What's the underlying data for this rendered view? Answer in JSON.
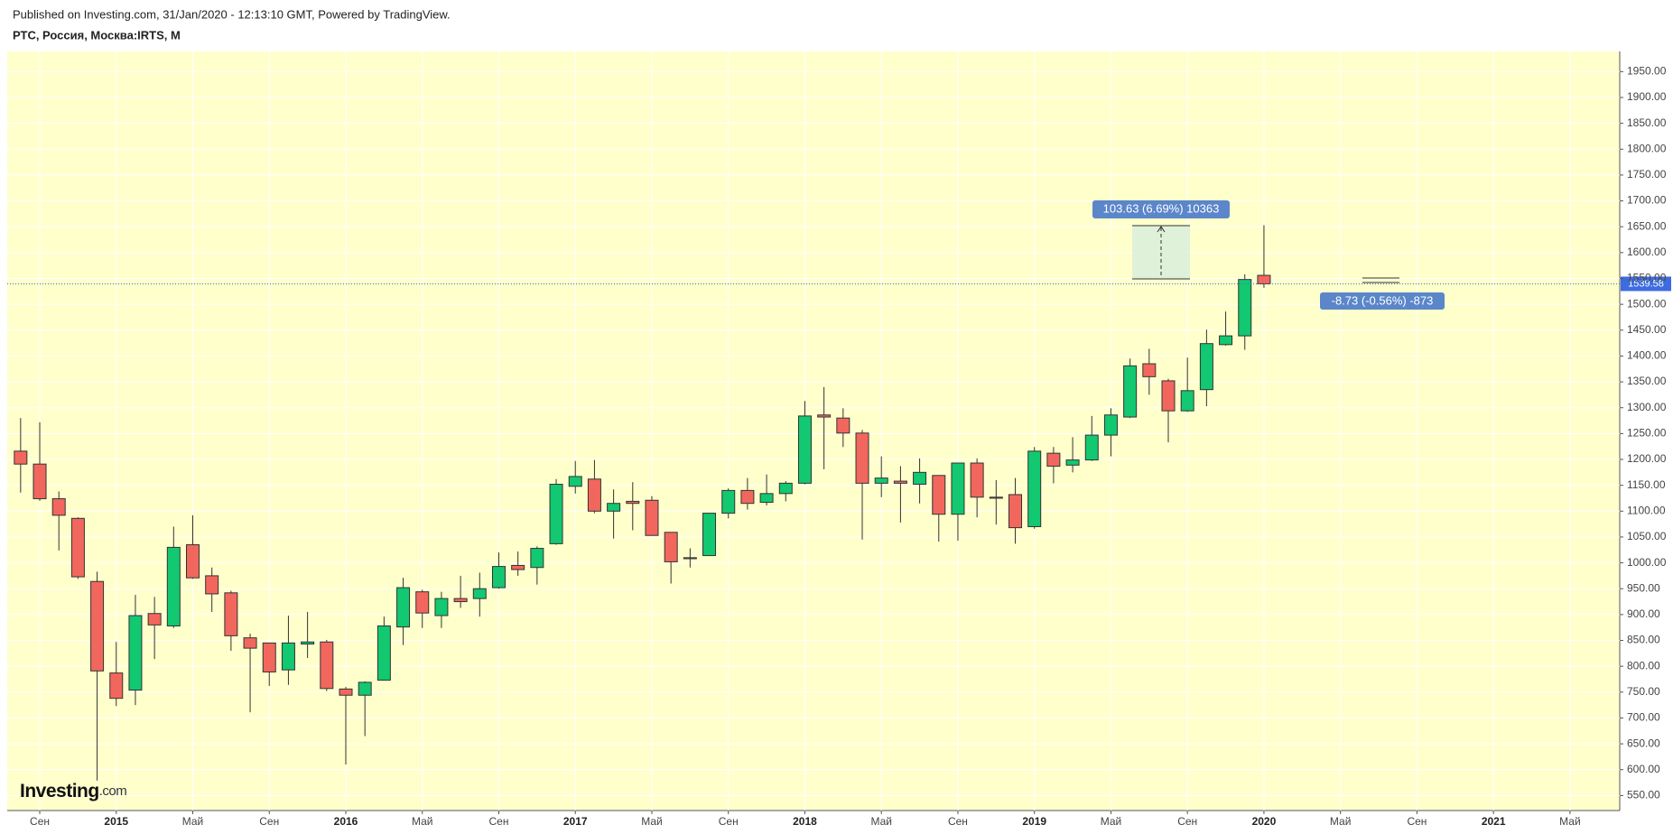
{
  "header": {
    "published": "Published on Investing.com, 31/Jan/2020 - 12:13:10 GMT, Powered by TradingView.",
    "symbol": "РТС, Россия, Москва:IRTS, M"
  },
  "logo": {
    "name": "Investing",
    "suffix": ".com"
  },
  "chart_data": {
    "type": "candlestick",
    "up_color": "#12c870",
    "down_color": "#f2675d",
    "grid": true,
    "open": [
      1216,
      1191,
      1124,
      1086,
      964,
      787,
      754,
      902,
      878,
      1035,
      975,
      942,
      855,
      845,
      793,
      843,
      847,
      756,
      744,
      773,
      876,
      944,
      898,
      931,
      931,
      952,
      995,
      991,
      1037,
      1148,
      1162,
      1100,
      1119,
      1121,
      1059,
      1010,
      1014,
      1096,
      1140,
      1117,
      1134,
      1154,
      1286,
      1280,
      1251,
      1154,
      1158,
      1152,
      1169,
      1094,
      1193,
      1127,
      1132,
      1070,
      1212,
      1189,
      1199,
      1247,
      1282,
      1385,
      1352,
      1294,
      1335,
      1422,
      1439,
      1556
    ],
    "high": [
      1280,
      1272,
      1138,
      1088,
      983,
      847,
      938,
      934,
      1070,
      1092,
      991,
      946,
      863,
      845,
      898,
      905,
      851,
      760,
      771,
      896,
      971,
      948,
      944,
      975,
      981,
      1020,
      1022,
      1032,
      1162,
      1197,
      1199,
      1142,
      1156,
      1129,
      1059,
      1028,
      1096,
      1144,
      1164,
      1171,
      1158,
      1313,
      1340,
      1299,
      1257,
      1206,
      1187,
      1202,
      1169,
      1193,
      1202,
      1160,
      1164,
      1224,
      1224,
      1243,
      1284,
      1299,
      1395,
      1414,
      1356,
      1397,
      1451,
      1486,
      1558,
      1653
    ],
    "low": [
      1136,
      1120,
      1024,
      969,
      579,
      723,
      725,
      814,
      874,
      969,
      905,
      830,
      711,
      762,
      764,
      816,
      752,
      610,
      665,
      773,
      841,
      874,
      874,
      913,
      896,
      950,
      975,
      958,
      1035,
      1134,
      1096,
      1047,
      1063,
      1053,
      960,
      991,
      1014,
      1086,
      1103,
      1111,
      1119,
      1152,
      1181,
      1224,
      1045,
      1127,
      1078,
      1115,
      1041,
      1043,
      1088,
      1074,
      1037,
      1066,
      1154,
      1175,
      1197,
      1206,
      1280,
      1325,
      1233,
      1292,
      1303,
      1420,
      1412,
      1532
    ],
    "close": [
      1191,
      1124,
      1092,
      973,
      791,
      738,
      898,
      880,
      1030,
      971,
      940,
      859,
      835,
      789,
      845,
      847,
      757,
      744,
      769,
      878,
      952,
      903,
      931,
      925,
      950,
      993,
      987,
      1028,
      1152,
      1167,
      1100,
      1115,
      1115,
      1053,
      1002,
      1008,
      1096,
      1140,
      1115,
      1134,
      1154,
      1284,
      1282,
      1251,
      1154,
      1164,
      1154,
      1175,
      1094,
      1193,
      1127,
      1125,
      1068,
      1216,
      1187,
      1199,
      1247,
      1286,
      1381,
      1360,
      1294,
      1333,
      1424,
      1439,
      1548,
      1539.58
    ],
    "last_price": 1539.58,
    "last_price_color": "#3d6ce0",
    "xlim": [
      -0.7,
      83.6
    ],
    "xticks": [
      {
        "value": 1,
        "label": "Сен"
      },
      {
        "value": 5,
        "label": "2015"
      },
      {
        "value": 9,
        "label": "Май"
      },
      {
        "value": 13,
        "label": "Сен"
      },
      {
        "value": 17,
        "label": "2016"
      },
      {
        "value": 21,
        "label": "Май"
      },
      {
        "value": 25,
        "label": "Сен"
      },
      {
        "value": 29,
        "label": "2017"
      },
      {
        "value": 33,
        "label": "Май"
      },
      {
        "value": 37,
        "label": "Сен"
      },
      {
        "value": 41,
        "label": "2018"
      },
      {
        "value": 45,
        "label": "Май"
      },
      {
        "value": 49,
        "label": "Сен"
      },
      {
        "value": 53,
        "label": "2019"
      },
      {
        "value": 57,
        "label": "Май"
      },
      {
        "value": 61,
        "label": "Сен"
      },
      {
        "value": 65,
        "label": "2020"
      },
      {
        "value": 69,
        "label": "Май"
      },
      {
        "value": 73,
        "label": "Сен"
      },
      {
        "value": 77,
        "label": "2021"
      },
      {
        "value": 81,
        "label": "Май"
      }
    ],
    "ylim": [
      521,
      1989
    ],
    "yticks": [
      {
        "value": 550,
        "label": "550.00"
      },
      {
        "value": 600,
        "label": "600.00"
      },
      {
        "value": 650,
        "label": "650.00"
      },
      {
        "value": 700,
        "label": "700.00"
      },
      {
        "value": 750,
        "label": "750.00"
      },
      {
        "value": 800,
        "label": "800.00"
      },
      {
        "value": 850,
        "label": "850.00"
      },
      {
        "value": 900,
        "label": "900.00"
      },
      {
        "value": 950,
        "label": "950.00"
      },
      {
        "value": 1000,
        "label": "1000.00"
      },
      {
        "value": 1050,
        "label": "1050.00"
      },
      {
        "value": 1100,
        "label": "1100.00"
      },
      {
        "value": 1150,
        "label": "1150.00"
      },
      {
        "value": 1200,
        "label": "1200.00"
      },
      {
        "value": 1250,
        "label": "1250.00"
      },
      {
        "value": 1300,
        "label": "1300.00"
      },
      {
        "value": 1350,
        "label": "1350.00"
      },
      {
        "value": 1400,
        "label": "1400.00"
      },
      {
        "value": 1450,
        "label": "1450.00"
      },
      {
        "value": 1500,
        "label": "1500.00"
      },
      {
        "value": 1550,
        "label": "1550.00"
      },
      {
        "value": 1600,
        "label": "1600.00"
      },
      {
        "value": 1650,
        "label": "1650.00"
      },
      {
        "value": 1700,
        "label": "1700.00"
      },
      {
        "value": 1750,
        "label": "1750.00"
      },
      {
        "value": 1800,
        "label": "1800.00"
      },
      {
        "value": 1850,
        "label": "1850.00"
      },
      {
        "value": 1900,
        "label": "1900.00"
      },
      {
        "value": 1950,
        "label": "1950.00"
      }
    ],
    "annotations": [
      {
        "text": "103.63 (6.69%) 10363"
      },
      {
        "text": "-8.73 (-0.56%) -873"
      }
    ]
  }
}
